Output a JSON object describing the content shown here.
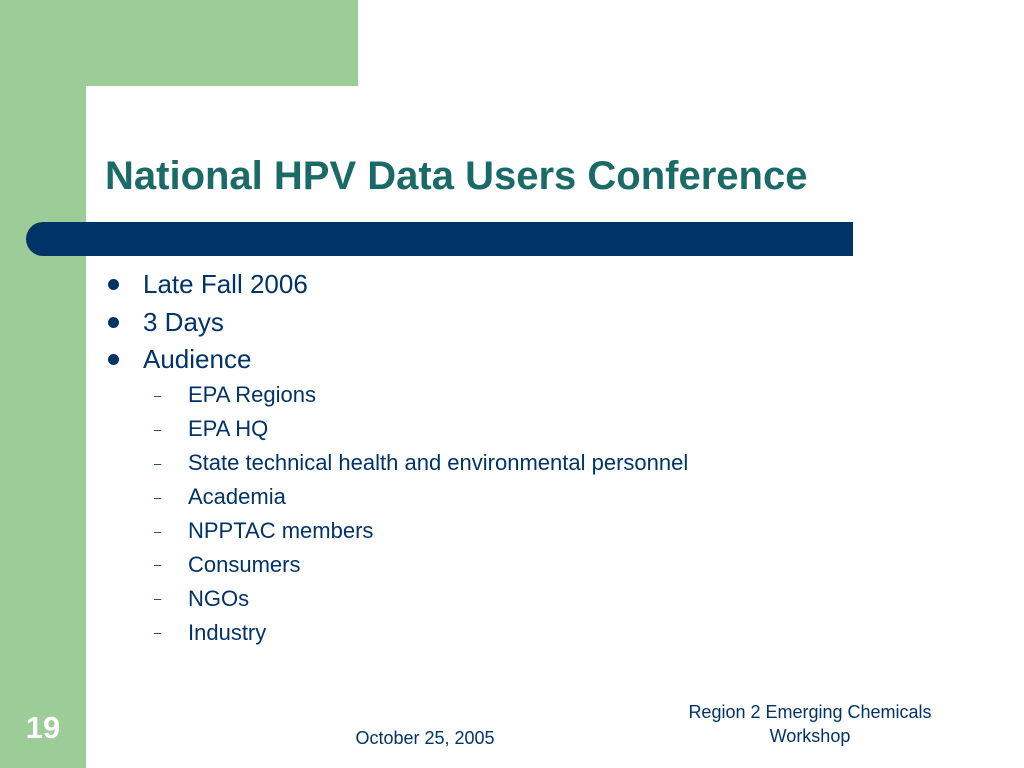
{
  "slide": {
    "title": "National HPV Data Users Conference",
    "bullets": [
      {
        "text": "Late Fall 2006"
      },
      {
        "text": "3 Days"
      },
      {
        "text": "Audience"
      }
    ],
    "sub_bullets": [
      {
        "text": "EPA Regions"
      },
      {
        "text": "EPA HQ"
      },
      {
        "text": "State technical health and environmental personnel"
      },
      {
        "text": "Academia"
      },
      {
        "text": "NPPTAC members"
      },
      {
        "text": "Consumers"
      },
      {
        "text": "NGOs"
      },
      {
        "text": "Industry"
      }
    ],
    "sub_marker": "–"
  },
  "footer": {
    "page_number": "19",
    "date": "October 25, 2005",
    "event_line1": "Region 2 Emerging Chemicals",
    "event_line2": "Workshop"
  },
  "colors": {
    "accent_green": "#9ccc98",
    "title_teal": "#1a6b67",
    "navy": "#003366"
  }
}
